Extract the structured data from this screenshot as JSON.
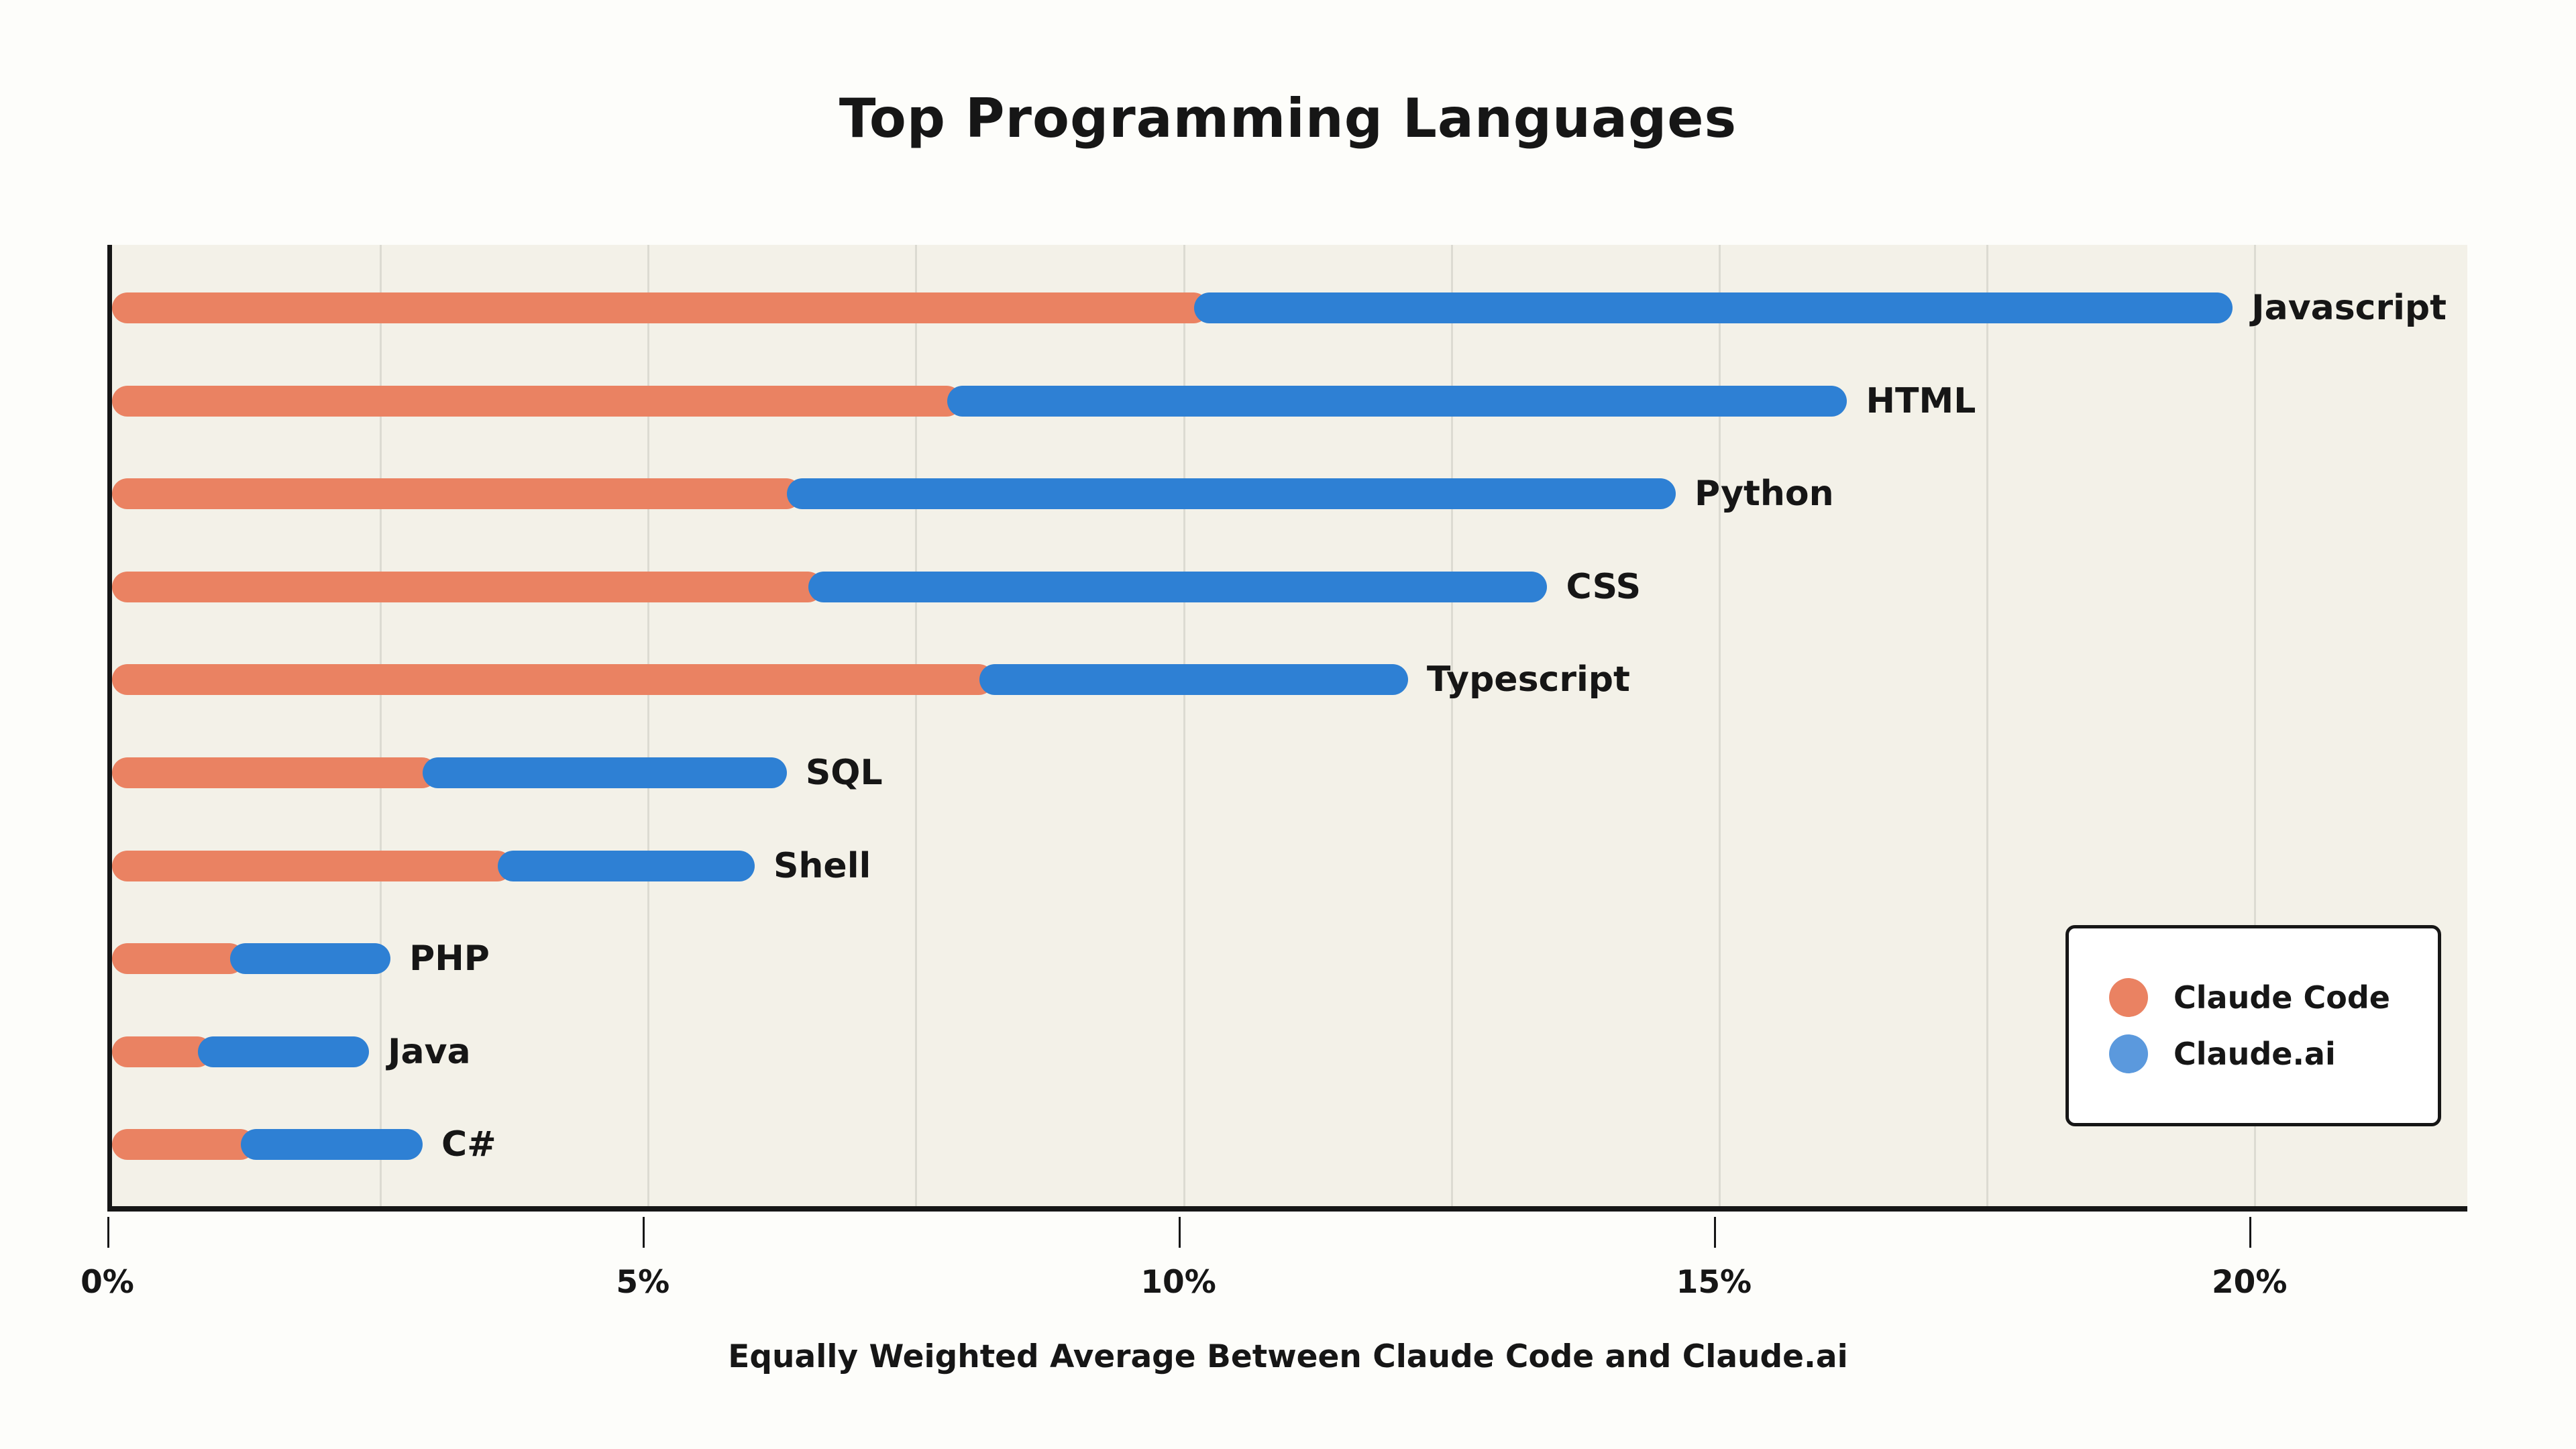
{
  "title": "Top Programming Languages",
  "x_axis": {
    "label": "Equally Weighted Average Between Claude Code and Claude.ai",
    "tick_labels": [
      "0%",
      "5%",
      "10%",
      "15%",
      "20%"
    ],
    "tick_values": [
      0,
      5,
      10,
      15,
      20
    ],
    "gridline_step_percent": 2.5,
    "max_percent": 22.1
  },
  "legend": {
    "items": [
      {
        "label": "Claude Code",
        "color": "#ea8262"
      },
      {
        "label": "Claude.ai",
        "color": "#5b99dd"
      }
    ]
  },
  "colors": {
    "claude_code_bar": "#ea8262",
    "claude_ai_bar": "#2e80d4",
    "plot_background": "#f3f1e8",
    "page_background": "#fdfdfa",
    "gridline": "#dcdbd2",
    "axis_and_text": "#161616",
    "legend_background": "#ffffff"
  },
  "chart_data": {
    "type": "bar",
    "orientation": "horizontal",
    "stacked": true,
    "title": "Top Programming Languages",
    "xlabel": "Equally Weighted Average Between Claude Code and Claude.ai",
    "xlim": [
      0,
      22.1
    ],
    "xticks": [
      0,
      5,
      10,
      15,
      20
    ],
    "grid": "vertical, every 2.5%",
    "legend_position": "lower right",
    "categories": [
      "Javascript",
      "HTML",
      "Python",
      "CSS",
      "Typescript",
      "SQL",
      "Shell",
      "PHP",
      "Java",
      "C#"
    ],
    "series": [
      {
        "name": "Claude Code",
        "values": [
          10.1,
          7.8,
          6.3,
          6.5,
          8.1,
          2.9,
          3.6,
          1.1,
          0.8,
          1.2
        ]
      },
      {
        "name": "Claude.ai",
        "values": [
          9.7,
          8.4,
          8.3,
          6.9,
          4.0,
          3.4,
          2.4,
          1.5,
          1.6,
          1.7
        ]
      }
    ],
    "totals": [
      19.8,
      16.2,
      14.6,
      13.4,
      12.1,
      6.3,
      6.0,
      2.6,
      2.4,
      2.9
    ]
  }
}
